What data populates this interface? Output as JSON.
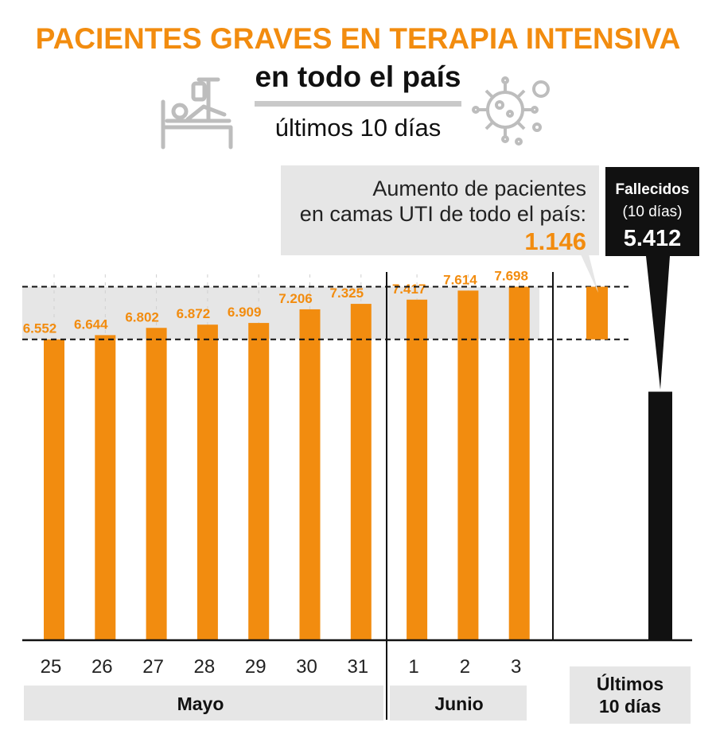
{
  "header": {
    "title": "PACIENTES GRAVES EN TERAPIA INTENSIVA",
    "subtitle": "en todo el país",
    "period": "últimos 10 días"
  },
  "callout": {
    "line1": "Aumento de pacientes",
    "line2": "en camas UTI de todo el país:",
    "value": "1.146"
  },
  "deaths": {
    "line1": "Fallecidos",
    "line2": "(10 días)",
    "value": "5.412",
    "numeric": 5412
  },
  "bottom_label": {
    "line1": "Últimos",
    "line2": "10 días"
  },
  "colors": {
    "accent": "#f28c0f",
    "deaths": "#111111",
    "band": "#e6e6e6"
  },
  "icons": [
    "hospital-bed-icon",
    "virus-icon"
  ],
  "chart_data": {
    "type": "bar",
    "title": "PACIENTES GRAVES EN TERAPIA INTENSIVA",
    "categories": [
      "25",
      "26",
      "27",
      "28",
      "29",
      "30",
      "31",
      "1",
      "2",
      "3"
    ],
    "values": [
      6552,
      6644,
      6802,
      6872,
      6909,
      7206,
      7325,
      7417,
      7614,
      7698
    ],
    "value_labels": [
      "6.552",
      "6.644",
      "6.802",
      "6.872",
      "6.909",
      "7.206",
      "7.325",
      "7.417",
      "7.614",
      "7.698"
    ],
    "groups": [
      {
        "label": "Mayo",
        "categories": [
          "25",
          "26",
          "27",
          "28",
          "29",
          "30",
          "31"
        ]
      },
      {
        "label": "Junio",
        "categories": [
          "1",
          "2",
          "3"
        ]
      }
    ],
    "increase": 1146,
    "ylim": [
      0,
      8400
    ],
    "grid": false
  }
}
